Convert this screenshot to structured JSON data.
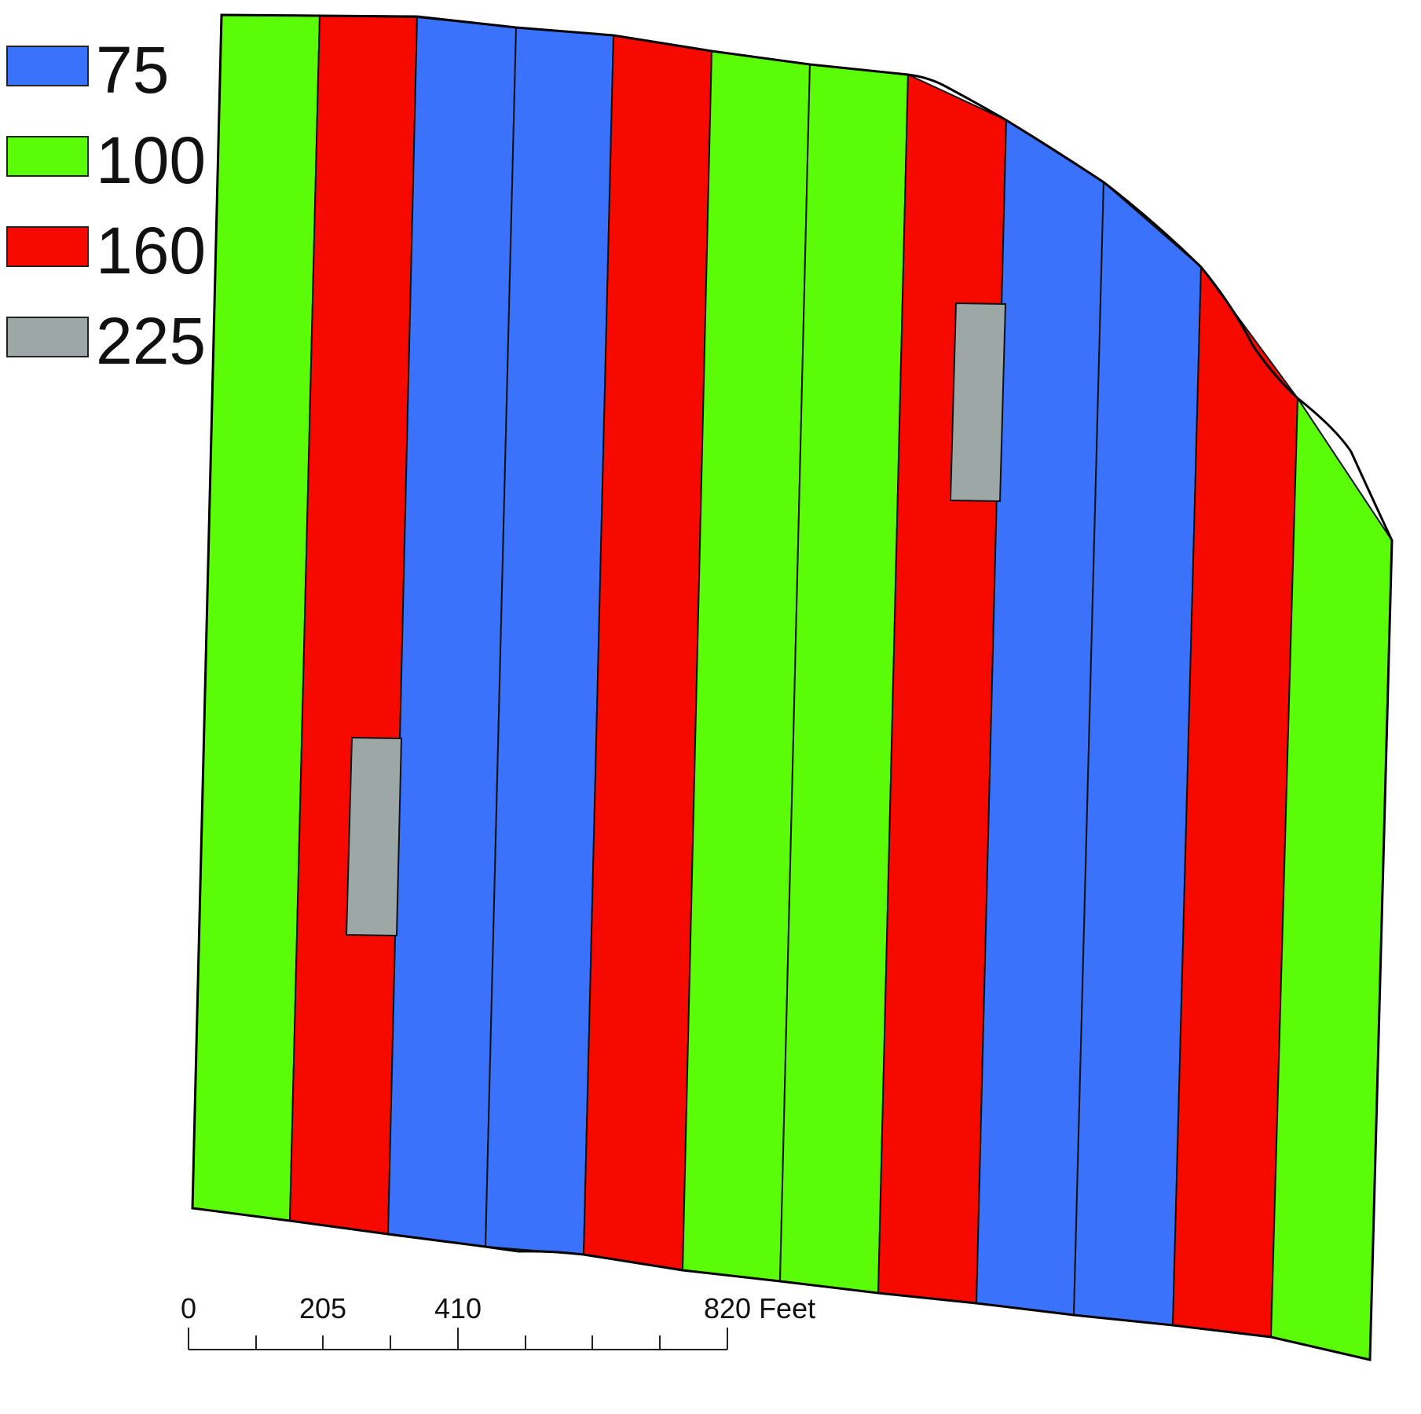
{
  "legend": {
    "items": [
      {
        "label": "75",
        "color": "#3b72fc"
      },
      {
        "label": "100",
        "color": "#5afc08"
      },
      {
        "label": "160",
        "color": "#f60a00"
      },
      {
        "label": "225",
        "color": "#9da8a6"
      }
    ]
  },
  "field": {
    "strip_rates": [
      "100",
      "160",
      "75",
      "75",
      "160",
      "100",
      "100",
      "160",
      "75",
      "75",
      "160",
      "100"
    ],
    "inset_plots": [
      "225",
      "225"
    ]
  },
  "scale_bar": {
    "ticks": [
      "0",
      "205",
      "410",
      "820 Feet"
    ]
  }
}
